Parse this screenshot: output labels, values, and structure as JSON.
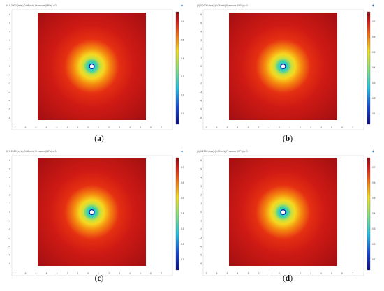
{
  "figure": {
    "panels": [
      {
        "id": "a",
        "label": "a",
        "header": "(ii) 0.2000 (m/s) (0.08 m/s) Pressure (MPa) ≥ 0",
        "colorbar_ticks": [
          "0.6",
          "0.5",
          "0.4",
          "0.3",
          "0.2",
          "0.1"
        ]
      },
      {
        "id": "b",
        "label": "b",
        "header": "(ii) 0.2000 (m/s) (0.08 m/s) Pressure (MPa) ≥ 0",
        "colorbar_ticks": [
          "0.7",
          "0.6",
          "0.5",
          "0.4",
          "0.3",
          "0.2",
          "0.1"
        ]
      },
      {
        "id": "c",
        "label": "c",
        "header": "(ii) 0.2000 (m/s) (0.08 m/s) Pressure (MPa) ≥ 0",
        "colorbar_ticks": [
          "0.7",
          "0.6",
          "0.5",
          "0.4",
          "0.3",
          "0.2",
          "0.1"
        ]
      },
      {
        "id": "d",
        "label": "d",
        "header": "(ii) 0.2000 (m/s) (0.08 m/s) Pressure (MPa) ≥ 0",
        "colorbar_ticks": [
          "0.7",
          "0.6",
          "0.5",
          "0.4",
          "0.3",
          "0.2",
          "0.1"
        ]
      }
    ],
    "x_ticks": [
      "-7",
      "-6",
      "-5",
      "-4",
      "-3",
      "-2",
      "-1",
      "0",
      "1",
      "2",
      "3",
      "4",
      "5",
      "6",
      "7"
    ],
    "y_ticks": [
      "6",
      "5",
      "4",
      "3",
      "2",
      "1",
      "0",
      "-1",
      "-2",
      "-3",
      "-4",
      "-5",
      "-6"
    ]
  }
}
